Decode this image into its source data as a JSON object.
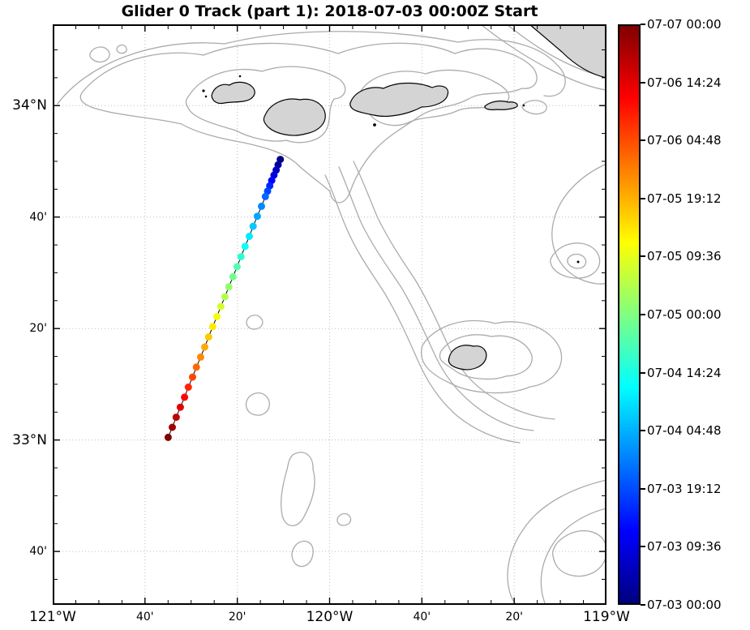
{
  "title": "Glider 0 Track (part 1): 2018-07-03 00:00Z Start",
  "chart_data": {
    "type": "scatter",
    "title": "Glider 0 Track (part 1): 2018-07-03 00:00Z Start",
    "xlabel": "",
    "ylabel": "",
    "xlim": [
      -121,
      -119
    ],
    "ylim": [
      32.507,
      34.243
    ],
    "grid": true,
    "legend": "none",
    "x_ticks": [
      {
        "lon": -121,
        "label": "121°W",
        "kind": "deg"
      },
      {
        "lon": -120.6667,
        "label": "40'",
        "kind": "min"
      },
      {
        "lon": -120.3333,
        "label": "20'",
        "kind": "min"
      },
      {
        "lon": -120,
        "label": "120°W",
        "kind": "deg"
      },
      {
        "lon": -119.6667,
        "label": "40'",
        "kind": "min"
      },
      {
        "lon": -119.3333,
        "label": "20'",
        "kind": "min"
      },
      {
        "lon": -119,
        "label": "119°W",
        "kind": "deg"
      }
    ],
    "y_ticks": [
      {
        "lat": 34,
        "label": "34°N",
        "kind": "deg"
      },
      {
        "lat": 33.6667,
        "label": "40'",
        "kind": "min"
      },
      {
        "lat": 33.3333,
        "label": "20'",
        "kind": "min"
      },
      {
        "lat": 33,
        "label": "33°N",
        "kind": "deg"
      },
      {
        "lat": 32.6667,
        "label": "40'",
        "kind": "min"
      }
    ],
    "colorbar": {
      "colormap": "jet",
      "orientation": "vertical",
      "top_value": "07-07 00:00",
      "bottom_value": "07-03 00:00",
      "tick_labels": [
        "07-07 00:00",
        "07-06 14:24",
        "07-06 04:48",
        "07-05 19:12",
        "07-05 09:36",
        "07-05 00:00",
        "07-04 14:24",
        "07-04 04:48",
        "07-03 19:12",
        "07-03 09:36",
        "07-03 00:00"
      ]
    },
    "series": [
      {
        "name": "glider-0-track",
        "marker": "circle",
        "marker_size_px": 9,
        "color_by": "time",
        "lon": [
          -120.178,
          -120.186,
          -120.193,
          -120.201,
          -120.209,
          -120.216,
          -120.224,
          -120.232,
          -120.246,
          -120.261,
          -120.276,
          -120.29,
          -120.305,
          -120.32,
          -120.334,
          -120.349,
          -120.364,
          -120.378,
          -120.393,
          -120.407,
          -120.422,
          -120.437,
          -120.451,
          -120.466,
          -120.481,
          -120.495,
          -120.51,
          -120.524,
          -120.539,
          -120.554,
          -120.568,
          -120.583
        ],
        "lat": [
          33.839,
          33.823,
          33.807,
          33.792,
          33.776,
          33.76,
          33.744,
          33.728,
          33.699,
          33.669,
          33.639,
          33.609,
          33.579,
          33.548,
          33.518,
          33.488,
          33.458,
          33.428,
          33.399,
          33.369,
          33.339,
          33.308,
          33.278,
          33.248,
          33.218,
          33.188,
          33.158,
          33.128,
          33.098,
          33.068,
          33.038,
          33.008
        ],
        "time_fraction": [
          0,
          0.032,
          0.065,
          0.097,
          0.129,
          0.161,
          0.194,
          0.226,
          0.258,
          0.29,
          0.323,
          0.355,
          0.387,
          0.419,
          0.452,
          0.484,
          0.516,
          0.548,
          0.581,
          0.613,
          0.645,
          0.677,
          0.71,
          0.742,
          0.774,
          0.806,
          0.839,
          0.871,
          0.903,
          0.935,
          0.968,
          1
        ]
      }
    ]
  }
}
